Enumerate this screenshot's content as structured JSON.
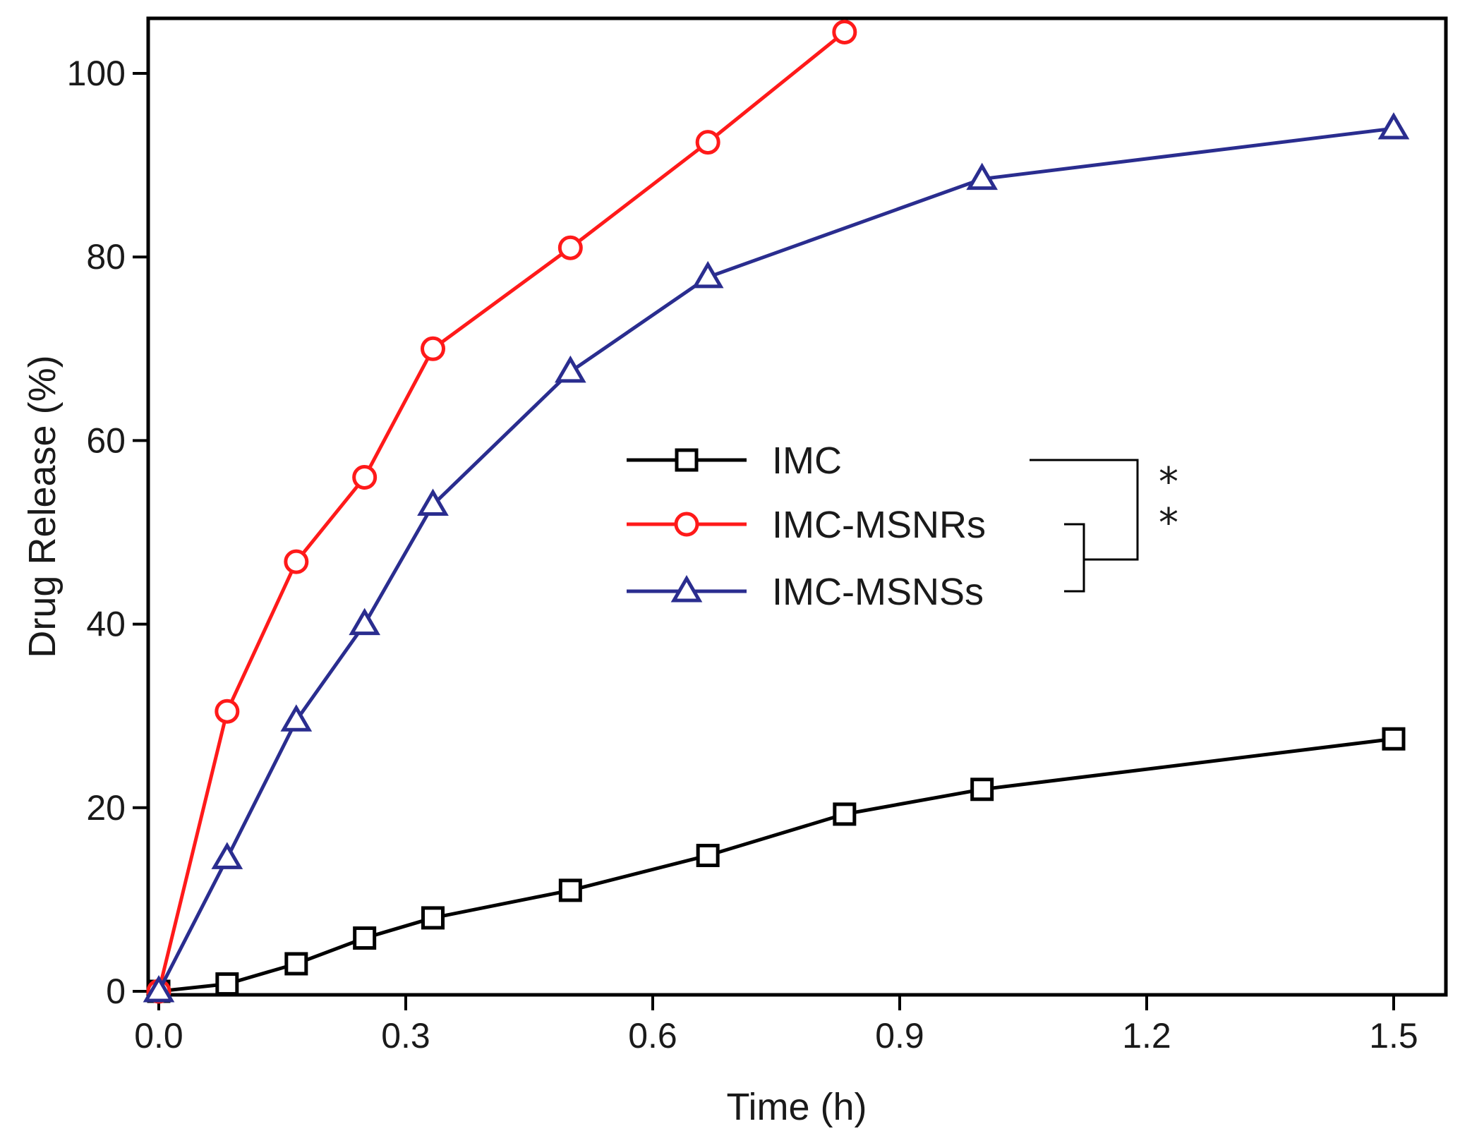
{
  "chart_data": {
    "type": "line",
    "title": "",
    "xlabel": "Time (h)",
    "ylabel": "Drug Release (%)",
    "xlim": [
      -0.01,
      1.55
    ],
    "ylim": [
      0,
      105
    ],
    "xticks": [
      0.0,
      0.3,
      0.6,
      0.9,
      1.2,
      1.5
    ],
    "xtick_labels": [
      "0.0",
      "0.3",
      "0.6",
      "0.9",
      "1.2",
      "1.5"
    ],
    "yticks": [
      0,
      20,
      40,
      60,
      80,
      100
    ],
    "ytick_labels": [
      "0",
      "20",
      "40",
      "60",
      "80",
      "100"
    ],
    "legend_position": "center-right",
    "series": [
      {
        "name": "IMC",
        "color": "#000000",
        "marker": "square",
        "x": [
          0,
          0.083,
          0.167,
          0.25,
          0.333,
          0.5,
          0.667,
          0.833,
          1.0,
          1.5
        ],
        "values": [
          0,
          0.8,
          3.0,
          5.8,
          8.0,
          11.0,
          14.8,
          19.3,
          22.0,
          27.5
        ]
      },
      {
        "name": "IMC-MSNRs",
        "color": "#ff1a1a",
        "marker": "circle",
        "x": [
          0,
          0.083,
          0.167,
          0.25,
          0.333,
          0.5,
          0.667,
          0.833
        ],
        "values": [
          0,
          30.5,
          46.8,
          56.0,
          70.0,
          81.0,
          92.5,
          104.5
        ]
      },
      {
        "name": "IMC-MSNSs",
        "color": "#2a2d8f",
        "marker": "triangle",
        "x": [
          0,
          0.083,
          0.167,
          0.25,
          0.333,
          0.5,
          0.667,
          1.0,
          1.5
        ],
        "values": [
          0,
          14.5,
          29.5,
          40.0,
          53.0,
          67.5,
          77.8,
          88.5,
          94.0
        ]
      }
    ],
    "annotations": {
      "significance": [
        "*",
        "*"
      ]
    }
  }
}
